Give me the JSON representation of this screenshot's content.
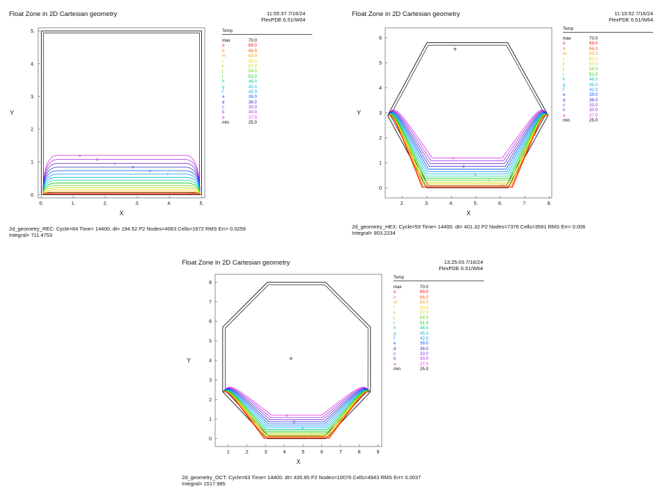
{
  "legend_header": "Temp",
  "legend_entries": [
    {
      "key": "max",
      "value": "70.0",
      "color": "#000000"
    },
    {
      "key": "o",
      "value": "69.0",
      "color": "#ff0000"
    },
    {
      "key": "n",
      "value": "66.0",
      "color": "#ff5a00"
    },
    {
      "key": "m",
      "value": "63.0",
      "color": "#ff9a00"
    },
    {
      "key": "l",
      "value": "60.0",
      "color": "#f0d000"
    },
    {
      "key": "k",
      "value": "57.0",
      "color": "#b8d800"
    },
    {
      "key": "j",
      "value": "54.0",
      "color": "#58d000"
    },
    {
      "key": "i",
      "value": "51.0",
      "color": "#00c800"
    },
    {
      "key": "h",
      "value": "48.0",
      "color": "#00c8a0"
    },
    {
      "key": "g",
      "value": "45.0",
      "color": "#00b8e0"
    },
    {
      "key": "f",
      "value": "42.0",
      "color": "#0090ff"
    },
    {
      "key": "e",
      "value": "39.0",
      "color": "#0050ff"
    },
    {
      "key": "d",
      "value": "36.0",
      "color": "#2828c0"
    },
    {
      "key": "c",
      "value": "33.0",
      "color": "#7030d0"
    },
    {
      "key": "b",
      "value": "30.0",
      "color": "#a020f0"
    },
    {
      "key": "a",
      "value": "27.0",
      "color": "#e020e0"
    },
    {
      "key": "min",
      "value": "25.0",
      "color": "#000000"
    }
  ],
  "panels": [
    {
      "id": "rec",
      "title": "Float Zone in 2D Cartesian geometry",
      "time": "11:05:37 7/16/24",
      "version": "FlexPDE 6.51/W64",
      "footer_line1": "2d_geometry_REC:  Cycle=64  Time= 14400.  dt= 194.52  P2  Nodes=4063 Cells=1972 RMS Err= 0.0259",
      "footer_line2": "Integral=  711.4753",
      "legend_entries": [
        {
          "key": "max",
          "value": "70.0"
        },
        {
          "key": "o",
          "value": "69.0"
        },
        {
          "key": "n",
          "value": "66.0"
        },
        {
          "key": "m",
          "value": "63.0"
        },
        {
          "key": "l",
          "value": "60.0"
        },
        {
          "key": "k",
          "value": "57.0"
        },
        {
          "key": "j",
          "value": "54.0"
        },
        {
          "key": "i",
          "value": "51.0"
        },
        {
          "key": "h",
          "value": "48.0"
        },
        {
          "key": "g",
          "value": "45.0"
        },
        {
          "key": "f",
          "value": "42.0"
        },
        {
          "key": "e",
          "value": "39.0"
        },
        {
          "key": "d",
          "value": "36.0"
        },
        {
          "key": "c",
          "value": "33.0"
        },
        {
          "key": "b",
          "value": "30.0"
        },
        {
          "key": "a",
          "value": "27.0"
        },
        {
          "key": "min",
          "value": "25.0"
        }
      ]
    },
    {
      "id": "hex",
      "title": "Float Zone in 2D Cartesian geometry",
      "time": "11:10:52 7/16/24",
      "version": "FlexPDE 6.51/W64",
      "footer_line1": "2d_geometry_HEX:  Cycle=59  Time= 14400.  dt= 401.32  P2  Nodes=7376 Cells=3591 RMS Err= 0.006",
      "footer_line2": "Integral=  903.2234",
      "legend_entries": [
        {
          "key": "max",
          "value": "70.0"
        },
        {
          "key": "o",
          "value": "69.0"
        },
        {
          "key": "n",
          "value": "66.0"
        },
        {
          "key": "m",
          "value": "63.0"
        },
        {
          "key": "l",
          "value": "60.0"
        },
        {
          "key": "k",
          "value": "57.0"
        },
        {
          "key": "j",
          "value": "54.0"
        },
        {
          "key": "i",
          "value": "51.0"
        },
        {
          "key": "h",
          "value": "48.0"
        },
        {
          "key": "g",
          "value": "45.0"
        },
        {
          "key": "f",
          "value": "42.0"
        },
        {
          "key": "e",
          "value": "39.0"
        },
        {
          "key": "d",
          "value": "36.0"
        },
        {
          "key": "c",
          "value": "33.0"
        },
        {
          "key": "b",
          "value": "30.0"
        },
        {
          "key": "a",
          "value": "27.0"
        },
        {
          "key": "min",
          "value": "25.0"
        }
      ]
    },
    {
      "id": "oct",
      "title": "Float Zone in 2D Cartesian geometry",
      "time": "13:25:03 7/16/24",
      "version": "FlexPDE 6.51/W64",
      "footer_line1": "2d_geometry_OCT:  Cycle=63  Time= 14400.  dt= 435.85  P2  Nodes=10076 Cells=4943 RMS Err= 0.0037",
      "footer_line2": "Integral=  1517.985",
      "legend_entries": [
        {
          "key": "max",
          "value": "70.0"
        },
        {
          "key": "o",
          "value": "69.0"
        },
        {
          "key": "n",
          "value": "66.0"
        },
        {
          "key": "m",
          "value": "63.0"
        },
        {
          "key": "l",
          "value": "60.0"
        },
        {
          "key": "k",
          "value": "57.0"
        },
        {
          "key": "j",
          "value": "54.0"
        },
        {
          "key": "i",
          "value": "51.0"
        },
        {
          "key": "h",
          "value": "48.0"
        },
        {
          "key": "g",
          "value": "45.0"
        },
        {
          "key": "f",
          "value": "42.0"
        },
        {
          "key": "e",
          "value": "39.0"
        },
        {
          "key": "d",
          "value": "36.0"
        },
        {
          "key": "c",
          "value": "33.0"
        },
        {
          "key": "b",
          "value": "30.0"
        },
        {
          "key": "a",
          "value": "27.0"
        },
        {
          "key": "min",
          "value": "25.0"
        }
      ]
    }
  ],
  "chart_data": [
    {
      "type": "contour",
      "title": "Float Zone in 2D Cartesian geometry",
      "xlabel": "X",
      "ylabel": "Y",
      "xlim": [
        -0.1,
        5.1
      ],
      "ylim": [
        -0.1,
        5.1
      ],
      "xticks": [
        0,
        1,
        2,
        3,
        4,
        5
      ],
      "yticks": [
        0,
        1,
        2,
        3,
        4,
        5
      ],
      "xtick_labels": [
        "0.",
        "1.",
        "2.",
        "3.",
        "4.",
        "5."
      ],
      "ytick_labels": [
        "0.",
        "1.",
        "2.",
        "3.",
        "4.",
        "5."
      ],
      "shape": "rectangle",
      "boundary": [
        [
          0,
          0
        ],
        [
          5,
          0
        ],
        [
          5,
          5
        ],
        [
          0,
          5
        ]
      ],
      "contour_levels": [
        27,
        30,
        33,
        36,
        39,
        42,
        45,
        48,
        51,
        54,
        57,
        60,
        63,
        66,
        69
      ],
      "contour_label_letters": [
        "a",
        "b",
        "c",
        "d",
        "e",
        "f",
        "g",
        "h",
        "i",
        "j",
        "k",
        "l",
        "m",
        "n",
        "o"
      ],
      "top_contour_height": 1.2,
      "marker_points": []
    },
    {
      "type": "contour",
      "title": "Float Zone in 2D Cartesian geometry",
      "xlabel": "X",
      "ylabel": "Y",
      "xlim": [
        1.3,
        8.1
      ],
      "ylim": [
        -0.4,
        6.4
      ],
      "xticks": [
        2,
        3,
        4,
        5,
        6,
        7,
        8
      ],
      "yticks": [
        0,
        1,
        2,
        3,
        4,
        5,
        6
      ],
      "xtick_labels": [
        "2.",
        "3.",
        "4.",
        "5.",
        "6.",
        "7.",
        "8."
      ],
      "ytick_labels": [
        "0",
        "1",
        "2",
        "3",
        "4",
        "5",
        "6"
      ],
      "shape": "hexagon",
      "boundary": [
        [
          3,
          0
        ],
        [
          6.3,
          0
        ],
        [
          7.95,
          2.9
        ],
        [
          6.3,
          5.8
        ],
        [
          3,
          5.8
        ],
        [
          1.4,
          2.9
        ]
      ],
      "contour_levels": [
        27,
        30,
        33,
        36,
        39,
        42,
        45,
        48,
        51,
        54,
        57,
        60,
        63,
        66,
        69
      ],
      "contour_label_letters": [
        "a",
        "b",
        "c",
        "d",
        "e",
        "f",
        "g",
        "h",
        "i",
        "j",
        "k",
        "l",
        "m",
        "n",
        "o"
      ],
      "top_contour_depth": 1.2,
      "marker_points": [
        [
          4.15,
          5.55
        ]
      ]
    },
    {
      "type": "contour",
      "title": "Float Zone in 2D Cartesian geometry",
      "xlabel": "X",
      "ylabel": "Y",
      "xlim": [
        0.3,
        9.2
      ],
      "ylim": [
        -0.4,
        8.4
      ],
      "xticks": [
        1,
        2,
        3,
        4,
        5,
        6,
        7,
        8,
        9
      ],
      "yticks": [
        0,
        1,
        2,
        3,
        4,
        5,
        6,
        7,
        8
      ],
      "xtick_labels": [
        "1",
        "2",
        "3",
        "4",
        "5",
        "6",
        "7",
        "8",
        "9"
      ],
      "ytick_labels": [
        "0",
        "1",
        "2",
        "3",
        "4",
        "5",
        "6",
        "7",
        "8"
      ],
      "shape": "octagon",
      "boundary": [
        [
          3.1,
          0
        ],
        [
          6.2,
          0
        ],
        [
          8.6,
          2.4
        ],
        [
          8.6,
          5.7
        ],
        [
          6.2,
          8
        ],
        [
          3.1,
          8
        ],
        [
          0.7,
          5.7
        ],
        [
          0.7,
          2.4
        ]
      ],
      "contour_levels": [
        27,
        30,
        33,
        36,
        39,
        42,
        45,
        48,
        51,
        54,
        57,
        60,
        63,
        66,
        69
      ],
      "contour_label_letters": [
        "a",
        "b",
        "c",
        "d",
        "e",
        "f",
        "g",
        "h",
        "i",
        "j",
        "k",
        "l",
        "m",
        "n",
        "o"
      ],
      "top_contour_depth": 1.2,
      "marker_points": [
        [
          4.35,
          4.1
        ]
      ]
    }
  ]
}
